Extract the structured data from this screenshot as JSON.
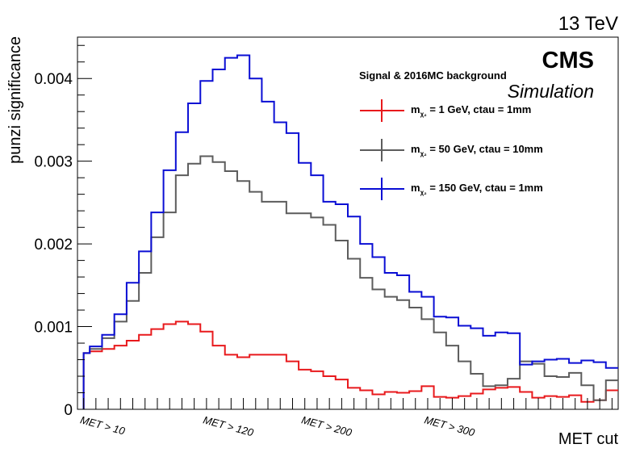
{
  "energy_label": "13 TeV",
  "experiment": "CMS",
  "experiment_sub": "Simulation",
  "legend_title": "Signal & 2016MC background",
  "chart_data": {
    "type": "line",
    "title": "",
    "xlabel": "MET cut",
    "ylabel": "punzi significance",
    "ylim": [
      0,
      0.0045
    ],
    "yticks": [
      {
        "value": 0,
        "label": "0"
      },
      {
        "value": 0.001,
        "label": "0.001"
      },
      {
        "value": 0.002,
        "label": "0.002"
      },
      {
        "value": 0.003,
        "label": "0.003"
      },
      {
        "value": 0.004,
        "label": "0.004"
      }
    ],
    "n_bins": 44,
    "x_tick_labels": [
      {
        "bin": 0,
        "label": "MET > 10"
      },
      {
        "bin": 10,
        "label": "MET > 120"
      },
      {
        "bin": 18,
        "label": "MET > 200"
      },
      {
        "bin": 28,
        "label": "MET > 300"
      }
    ],
    "legend": "top-right",
    "series": [
      {
        "name": "m_{χ2} = 1 GeV, ctau = 1mm",
        "label_main": "m",
        "label_sub": "χ₂",
        "label_rest": " = 1 GeV, ctau = 1mm",
        "color": "#e8191c",
        "values": [
          0.00068,
          0.0007,
          0.00073,
          0.00077,
          0.00083,
          0.0009,
          0.00097,
          0.00103,
          0.00106,
          0.00103,
          0.00094,
          0.00077,
          0.00066,
          0.00063,
          0.00066,
          0.00066,
          0.00066,
          0.00058,
          0.00048,
          0.00046,
          0.0004,
          0.00036,
          0.00026,
          0.00023,
          0.00018,
          0.00021,
          0.0002,
          0.00022,
          0.00028,
          0.00015,
          0.00014,
          0.00016,
          0.00019,
          0.00024,
          0.00026,
          0.00027,
          0.00021,
          0.00014,
          0.00016,
          0.00015,
          0.00017,
          9e-05,
          0.00011,
          0.00023
        ]
      },
      {
        "name": "m_{χ2} = 50 GeV, ctau = 10mm",
        "label_main": "m",
        "label_sub": "χ₂",
        "label_rest": " = 50 GeV, ctau = 10mm",
        "color": "#5c5c5c",
        "values": [
          0.00068,
          0.00073,
          0.00086,
          0.00106,
          0.00131,
          0.00165,
          0.00208,
          0.00238,
          0.00283,
          0.00297,
          0.00306,
          0.00299,
          0.00288,
          0.00276,
          0.00263,
          0.00251,
          0.00251,
          0.00237,
          0.00237,
          0.00232,
          0.00223,
          0.00204,
          0.00182,
          0.00159,
          0.00145,
          0.00136,
          0.00132,
          0.00123,
          0.00109,
          0.00093,
          0.00077,
          0.00058,
          0.00043,
          0.00028,
          0.00029,
          0.00037,
          0.00058,
          0.00055,
          0.0004,
          0.00039,
          0.00044,
          0.00029,
          0.00011,
          0.00035
        ]
      },
      {
        "name": "m_{χ2} = 150 GeV, ctau = 1mm",
        "label_main": "m",
        "label_sub": "χ₂",
        "label_rest": " = 150 GeV, ctau = 1mm",
        "color": "#0a0ed4",
        "values": [
          0.00068,
          0.00076,
          0.0009,
          0.00115,
          0.00153,
          0.00191,
          0.00238,
          0.00289,
          0.00335,
          0.0037,
          0.00397,
          0.00411,
          0.00425,
          0.00428,
          0.004,
          0.00372,
          0.00347,
          0.00334,
          0.00298,
          0.00283,
          0.00251,
          0.00248,
          0.00233,
          0.002,
          0.00184,
          0.00165,
          0.00162,
          0.00142,
          0.00136,
          0.00112,
          0.00111,
          0.00101,
          0.00098,
          0.00089,
          0.00093,
          0.00092,
          0.00054,
          0.00058,
          0.0006,
          0.00061,
          0.00056,
          0.00059,
          0.00057,
          0.0005
        ]
      }
    ]
  }
}
